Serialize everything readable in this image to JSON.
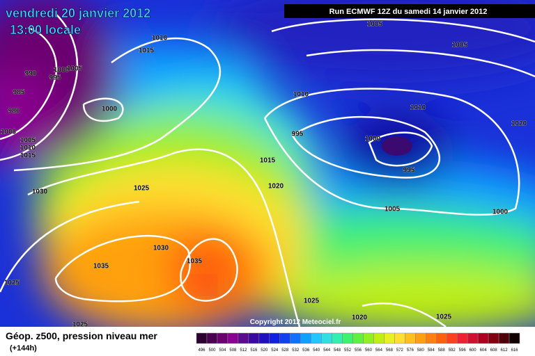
{
  "header": {
    "date": "vendredi 20 janvier 2012",
    "time": "13:00 locale",
    "run": "Run ECMWF 12Z du samedi 14 janvier 2012"
  },
  "isobar_labels": [
    "1005",
    "1005",
    "1010",
    "1015",
    "990",
    "995",
    "1000",
    "1005",
    "985",
    "980",
    "1000",
    "1000",
    "1005",
    "1010",
    "1015",
    "1010",
    "1010",
    "1020",
    "995",
    "1000",
    "995",
    "1015",
    "1020",
    "1025",
    "1030",
    "1005",
    "1000",
    "1030",
    "1035",
    "1035",
    "1025",
    "1025",
    "1020",
    "1025",
    "1025"
  ],
  "copyright": "Copyright 2012 Meteociel.fr",
  "legend": {
    "title": "Géop. z500, pression niveau mer",
    "subtitle": "(+144h)",
    "labels": [
      "496",
      "500",
      "504",
      "508",
      "512",
      "516",
      "520",
      "524",
      "528",
      "532",
      "536",
      "540",
      "544",
      "548",
      "552",
      "556",
      "560",
      "564",
      "568",
      "572",
      "576",
      "580",
      "584",
      "588",
      "592",
      "596",
      "600",
      "604",
      "608",
      "612",
      "616"
    ],
    "colors": [
      "#2b0030",
      "#4a0050",
      "#6a0070",
      "#8a0090",
      "#5a0a8a",
      "#3a0aa0",
      "#2010c0",
      "#1020e0",
      "#1040f0",
      "#1070ff",
      "#10a0ff",
      "#20c8ff",
      "#30e0e0",
      "#30f0b0",
      "#40f070",
      "#60f040",
      "#90f020",
      "#c0f010",
      "#e8f020",
      "#ffe030",
      "#ffc020",
      "#ffa010",
      "#ff8010",
      "#ff6010",
      "#ff4020",
      "#f02030",
      "#d01030",
      "#b00020",
      "#800010",
      "#500008",
      "#100000"
    ]
  }
}
